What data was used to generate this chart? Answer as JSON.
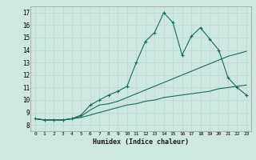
{
  "xlabel": "Humidex (Indice chaleur)",
  "background_color": "#cce8e0",
  "grid_color": "#b8d8d0",
  "line_color": "#1a6a5a",
  "xlim": [
    -0.5,
    23.5
  ],
  "ylim": [
    7.5,
    17.5
  ],
  "xtick_labels": [
    "0",
    "1",
    "2",
    "3",
    "4",
    "5",
    "6",
    "7",
    "8",
    "9",
    "10",
    "11",
    "12",
    "13",
    "14",
    "15",
    "16",
    "17",
    "18",
    "19",
    "20",
    "21",
    "22",
    "23"
  ],
  "ytick_labels": [
    "8",
    "9",
    "10",
    "11",
    "12",
    "13",
    "14",
    "15",
    "16",
    "17"
  ],
  "ytick_vals": [
    8,
    9,
    10,
    11,
    12,
    13,
    14,
    15,
    16,
    17
  ],
  "series1_x": [
    0,
    1,
    2,
    3,
    4,
    5,
    6,
    7,
    8,
    9,
    10,
    11,
    12,
    13,
    14,
    15,
    16,
    17,
    18,
    19,
    20,
    21,
    22,
    23
  ],
  "series1_y": [
    8.5,
    8.4,
    8.4,
    8.4,
    8.5,
    8.8,
    9.6,
    10.0,
    10.4,
    10.7,
    11.1,
    13.0,
    14.7,
    15.4,
    17.0,
    16.2,
    13.6,
    15.1,
    15.8,
    14.9,
    14.0,
    11.8,
    11.0,
    10.4
  ],
  "series2_x": [
    0,
    1,
    2,
    3,
    4,
    5,
    6,
    7,
    8,
    9,
    10,
    11,
    12,
    13,
    14,
    15,
    16,
    17,
    18,
    19,
    20,
    21,
    22,
    23
  ],
  "series2_y": [
    8.5,
    8.4,
    8.4,
    8.4,
    8.5,
    8.7,
    9.2,
    9.6,
    9.7,
    9.9,
    10.2,
    10.5,
    10.8,
    11.1,
    11.4,
    11.7,
    12.0,
    12.3,
    12.6,
    12.9,
    13.2,
    13.5,
    13.7,
    13.9
  ],
  "series3_x": [
    0,
    1,
    2,
    3,
    4,
    5,
    6,
    7,
    8,
    9,
    10,
    11,
    12,
    13,
    14,
    15,
    16,
    17,
    18,
    19,
    20,
    21,
    22,
    23
  ],
  "series3_y": [
    8.5,
    8.4,
    8.4,
    8.4,
    8.5,
    8.6,
    8.8,
    9.0,
    9.2,
    9.4,
    9.6,
    9.7,
    9.9,
    10.0,
    10.2,
    10.3,
    10.4,
    10.5,
    10.6,
    10.7,
    10.9,
    11.0,
    11.1,
    11.2
  ]
}
